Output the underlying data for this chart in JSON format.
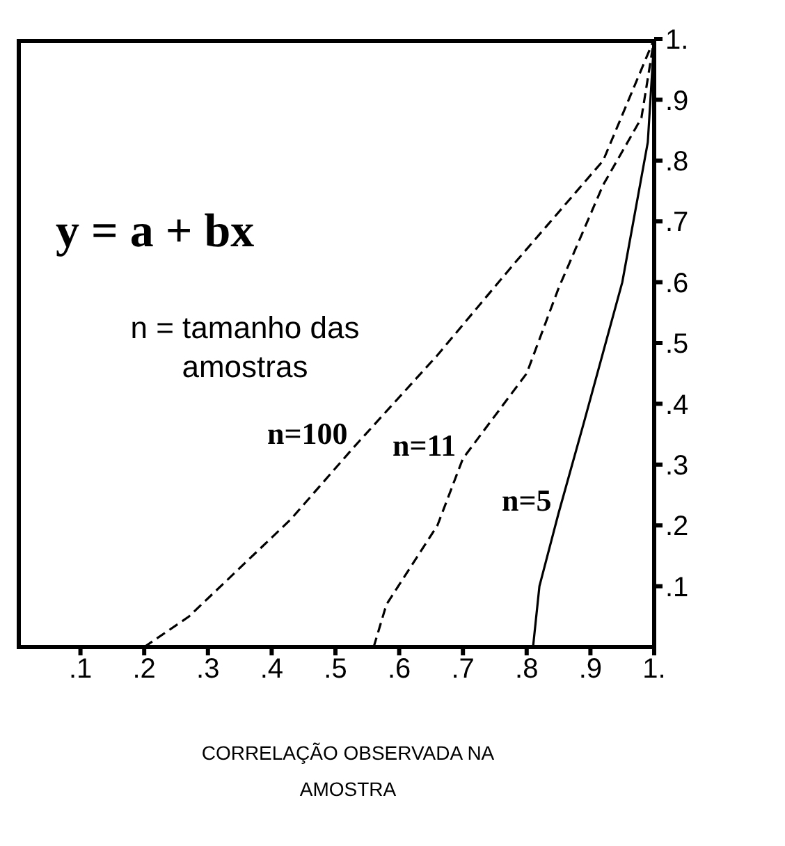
{
  "chart_data": {
    "type": "line",
    "xlabel": "CORRELAÇÃO OBSERVADA NA AMOSTRA",
    "annotations": [
      "y = a + bx",
      "n = tamanho das amostras"
    ],
    "xlim": [
      0,
      1
    ],
    "ylim": [
      0,
      1
    ],
    "xticks": [
      {
        "value": 0.1,
        "label": ".1"
      },
      {
        "value": 0.2,
        "label": ".2"
      },
      {
        "value": 0.3,
        "label": ".3"
      },
      {
        "value": 0.4,
        "label": ".4"
      },
      {
        "value": 0.5,
        "label": ".5"
      },
      {
        "value": 0.6,
        "label": ".6"
      },
      {
        "value": 0.7,
        "label": ".7"
      },
      {
        "value": 0.8,
        "label": ".8"
      },
      {
        "value": 0.9,
        "label": ".9"
      },
      {
        "value": 1,
        "label": "1."
      }
    ],
    "yticks": [
      {
        "value": 0.1,
        "label": ".1"
      },
      {
        "value": 0.2,
        "label": ".2"
      },
      {
        "value": 0.3,
        "label": ".3"
      },
      {
        "value": 0.4,
        "label": ".4"
      },
      {
        "value": 0.5,
        "label": ".5"
      },
      {
        "value": 0.6,
        "label": ".6"
      },
      {
        "value": 0.7,
        "label": ".7"
      },
      {
        "value": 0.8,
        "label": ".8"
      },
      {
        "value": 0.9,
        "label": ".9"
      },
      {
        "value": 1,
        "label": "1."
      }
    ],
    "grid": false,
    "legend": false,
    "marker": "none",
    "series": [
      {
        "name": "n=100",
        "color": "#000000",
        "line_style": "dashed",
        "x": [
          0.2,
          0.27,
          0.43,
          0.53,
          0.66,
          0.78,
          0.92,
          1
        ],
        "values": [
          0,
          0.05,
          0.21,
          0.33,
          0.48,
          0.63,
          0.8,
          1
        ]
      },
      {
        "name": "n=11",
        "color": "#000000",
        "line_style": "dashed",
        "x": [
          0.56,
          0.58,
          0.66,
          0.7,
          0.8,
          0.85,
          0.92,
          0.98,
          1
        ],
        "values": [
          0,
          0.07,
          0.2,
          0.31,
          0.45,
          0.59,
          0.76,
          0.87,
          1
        ]
      },
      {
        "name": "n=5",
        "color": "#000000",
        "line_style": "solid",
        "x": [
          0.81,
          0.82,
          0.85,
          0.89,
          0.95,
          0.99,
          1
        ],
        "values": [
          0,
          0.1,
          0.22,
          0.37,
          0.6,
          0.83,
          1
        ]
      }
    ]
  }
}
